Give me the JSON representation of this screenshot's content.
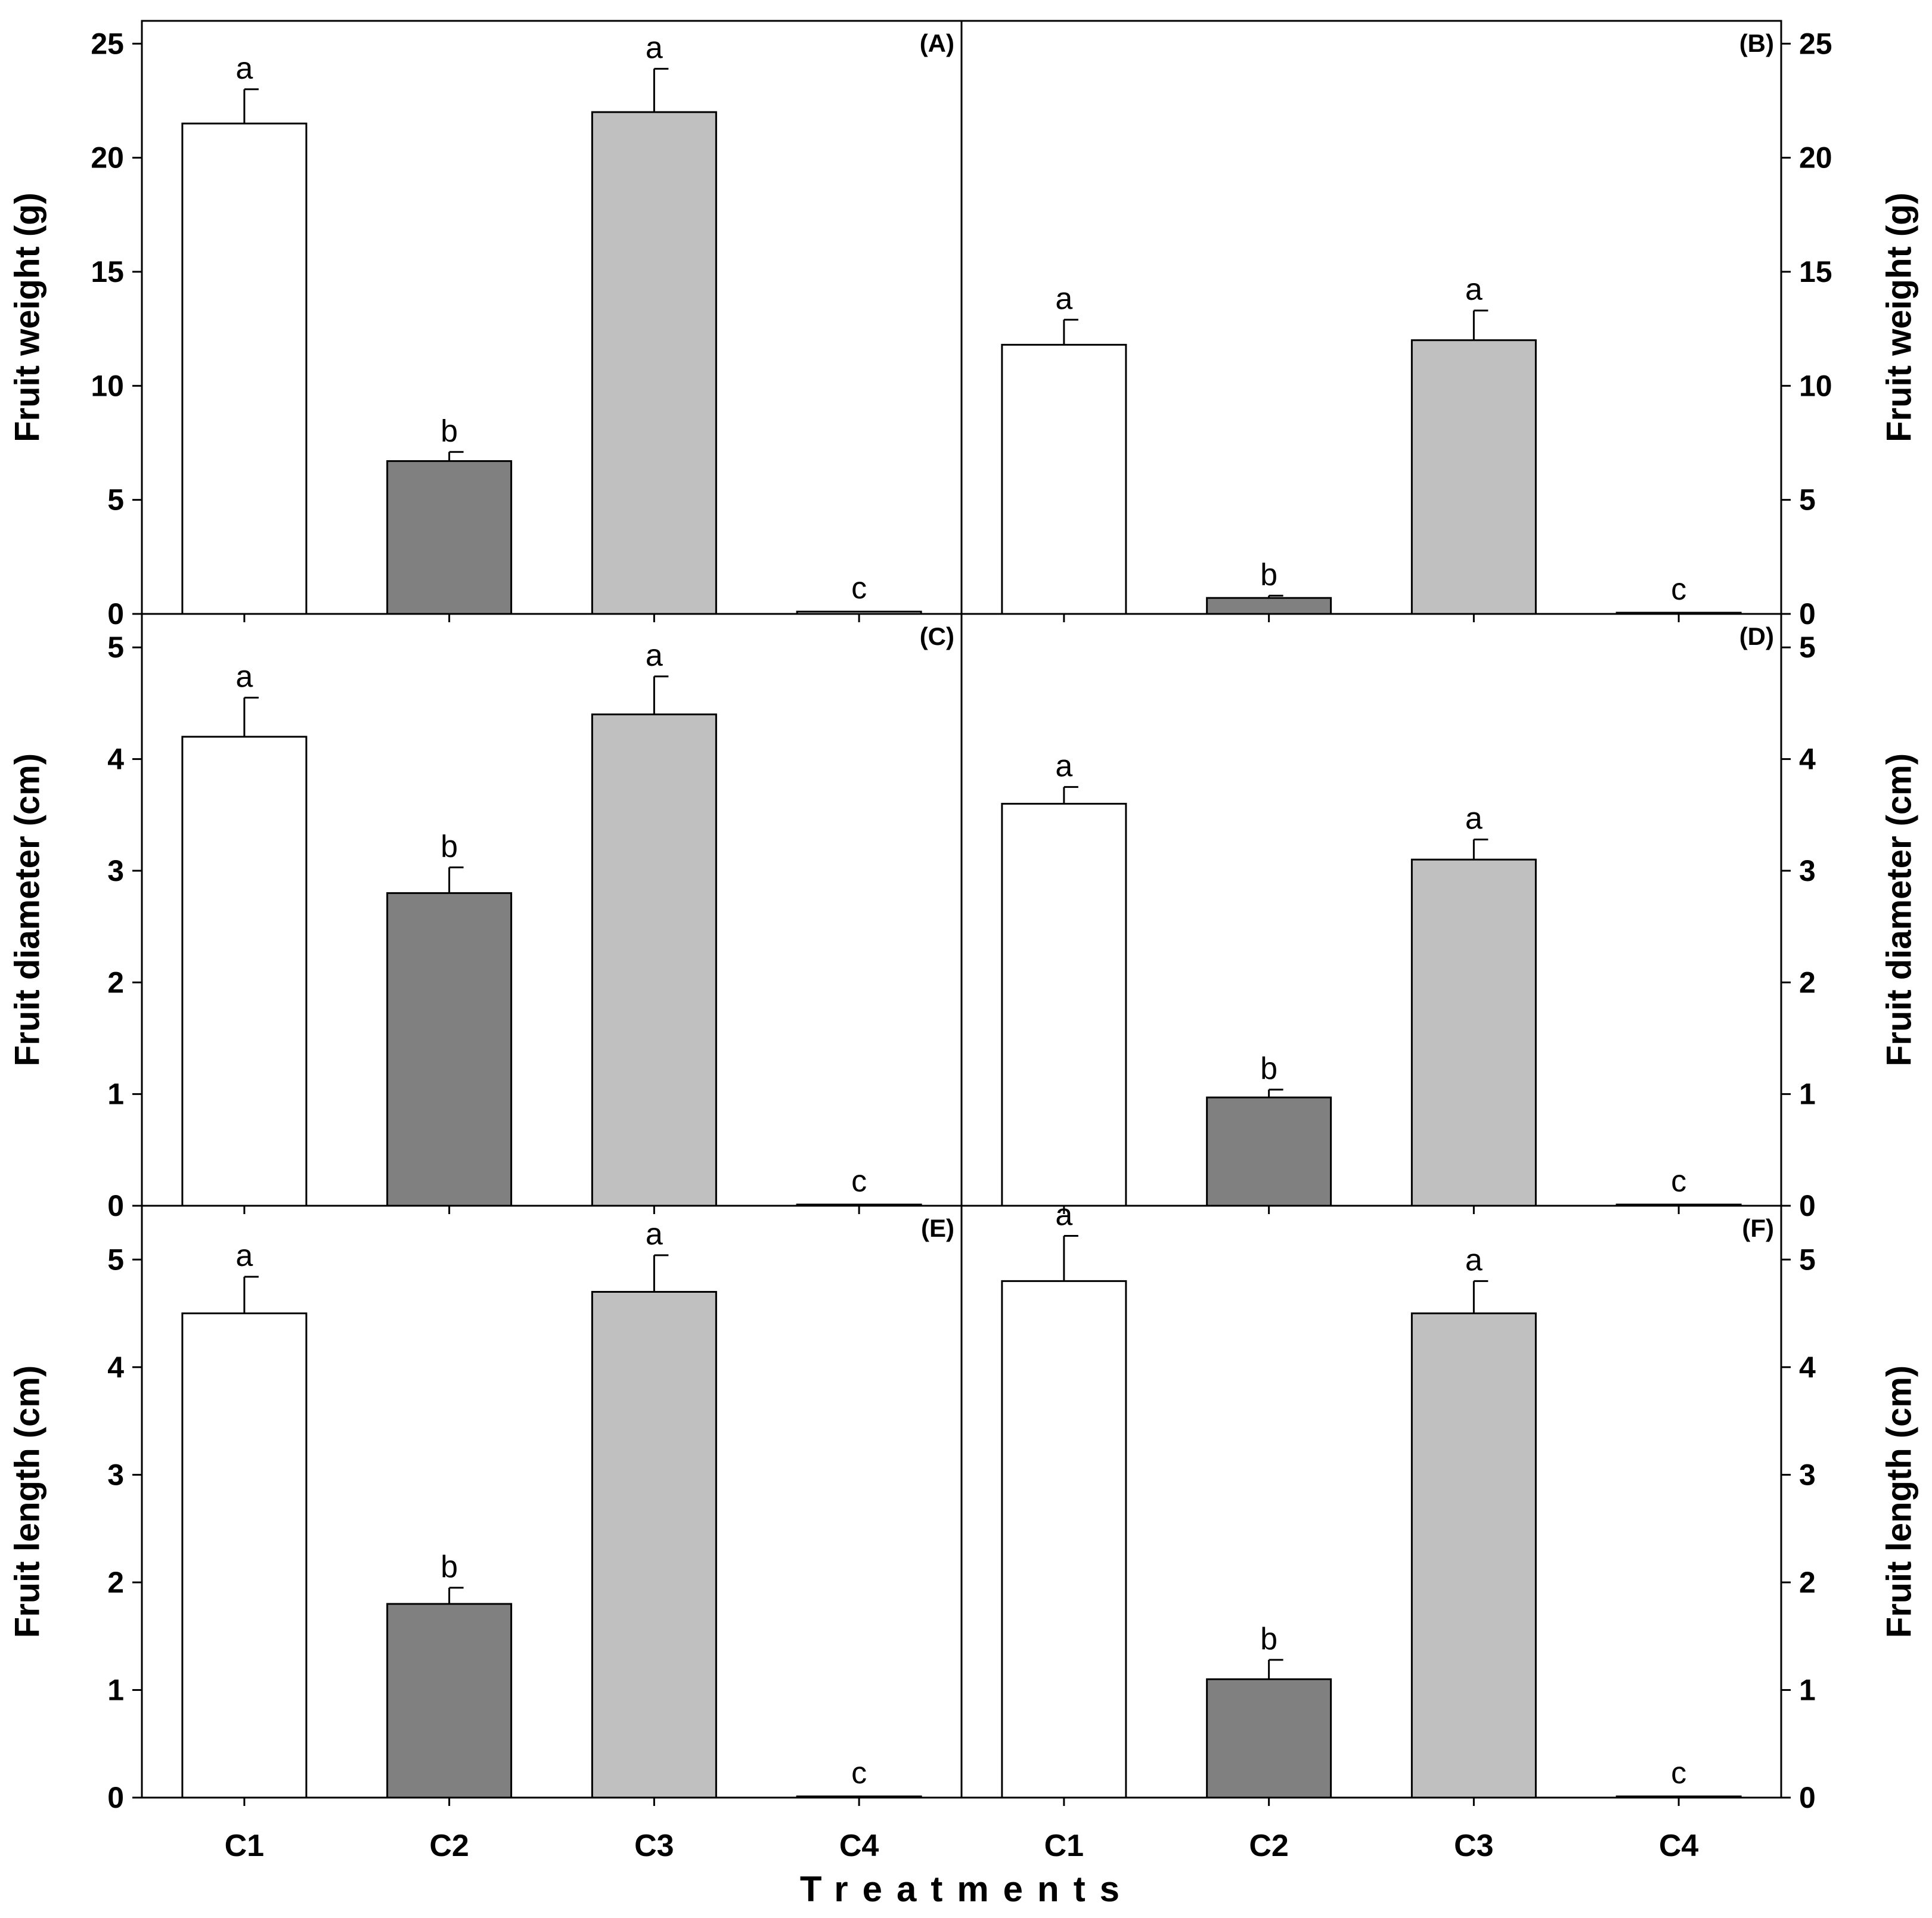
{
  "figure": {
    "x_title": "Treatments",
    "categories": [
      "C1",
      "C2",
      "C3",
      "C4"
    ],
    "colors": {
      "C1": "#ffffff",
      "C2": "#808080",
      "C3": "#c0c0c0",
      "C4": "#ffffff"
    }
  },
  "chart_data": [
    {
      "type": "bar",
      "panel": "(A)",
      "ylabel": "Fruit weight (g)",
      "ylim": [
        0,
        26
      ],
      "yticks": [
        0,
        5,
        10,
        15,
        20,
        25
      ],
      "categories": [
        "C1",
        "C2",
        "C3",
        "C4"
      ],
      "values": [
        21.5,
        6.7,
        22.0,
        0.1
      ],
      "errors": [
        1.5,
        0.4,
        1.9,
        0.0
      ],
      "significance": [
        "a",
        "b",
        "a",
        "c"
      ]
    },
    {
      "type": "bar",
      "panel": "(B)",
      "ylabel": "Fruit weight (g)",
      "ylim": [
        0,
        26
      ],
      "yticks": [
        0,
        5,
        10,
        15,
        20,
        25
      ],
      "categories": [
        "C1",
        "C2",
        "C3",
        "C4"
      ],
      "values": [
        11.8,
        0.7,
        12.0,
        0.05
      ],
      "errors": [
        1.1,
        0.1,
        1.3,
        0.0
      ],
      "significance": [
        "a",
        "b",
        "a",
        "c"
      ]
    },
    {
      "type": "bar",
      "panel": "(C)",
      "ylabel": "Fruit diameter (cm)",
      "ylim": [
        0,
        5.3
      ],
      "yticks": [
        0,
        1,
        2,
        3,
        4,
        5
      ],
      "categories": [
        "C1",
        "C2",
        "C3",
        "C4"
      ],
      "values": [
        4.2,
        2.8,
        4.4,
        0.01
      ],
      "errors": [
        0.35,
        0.23,
        0.34,
        0.0
      ],
      "significance": [
        "a",
        "b",
        "a",
        "c"
      ]
    },
    {
      "type": "bar",
      "panel": "(D)",
      "ylabel": "Fruit diameter (cm)",
      "ylim": [
        0,
        5.3
      ],
      "yticks": [
        0,
        1,
        2,
        3,
        4,
        5
      ],
      "categories": [
        "C1",
        "C2",
        "C3",
        "C4"
      ],
      "values": [
        3.6,
        0.97,
        3.1,
        0.01
      ],
      "errors": [
        0.15,
        0.07,
        0.18,
        0.0
      ],
      "significance": [
        "a",
        "b",
        "a",
        "c"
      ]
    },
    {
      "type": "bar",
      "panel": "(E)",
      "ylabel": "Fruit length (cm)",
      "ylim": [
        0,
        5.5
      ],
      "yticks": [
        0,
        1,
        2,
        3,
        4,
        5
      ],
      "categories": [
        "C1",
        "C2",
        "C3",
        "C4"
      ],
      "values": [
        4.5,
        1.8,
        4.7,
        0.01
      ],
      "errors": [
        0.34,
        0.15,
        0.34,
        0.0
      ],
      "significance": [
        "a",
        "b",
        "a",
        "c"
      ]
    },
    {
      "type": "bar",
      "panel": "(F)",
      "ylabel": "Fruit length (cm)",
      "ylim": [
        0,
        5.5
      ],
      "yticks": [
        0,
        1,
        2,
        3,
        4,
        5
      ],
      "categories": [
        "C1",
        "C2",
        "C3",
        "C4"
      ],
      "values": [
        4.8,
        1.1,
        4.5,
        0.01
      ],
      "errors": [
        0.42,
        0.18,
        0.3,
        0.0
      ],
      "significance": [
        "a",
        "b",
        "a",
        "c"
      ]
    }
  ]
}
